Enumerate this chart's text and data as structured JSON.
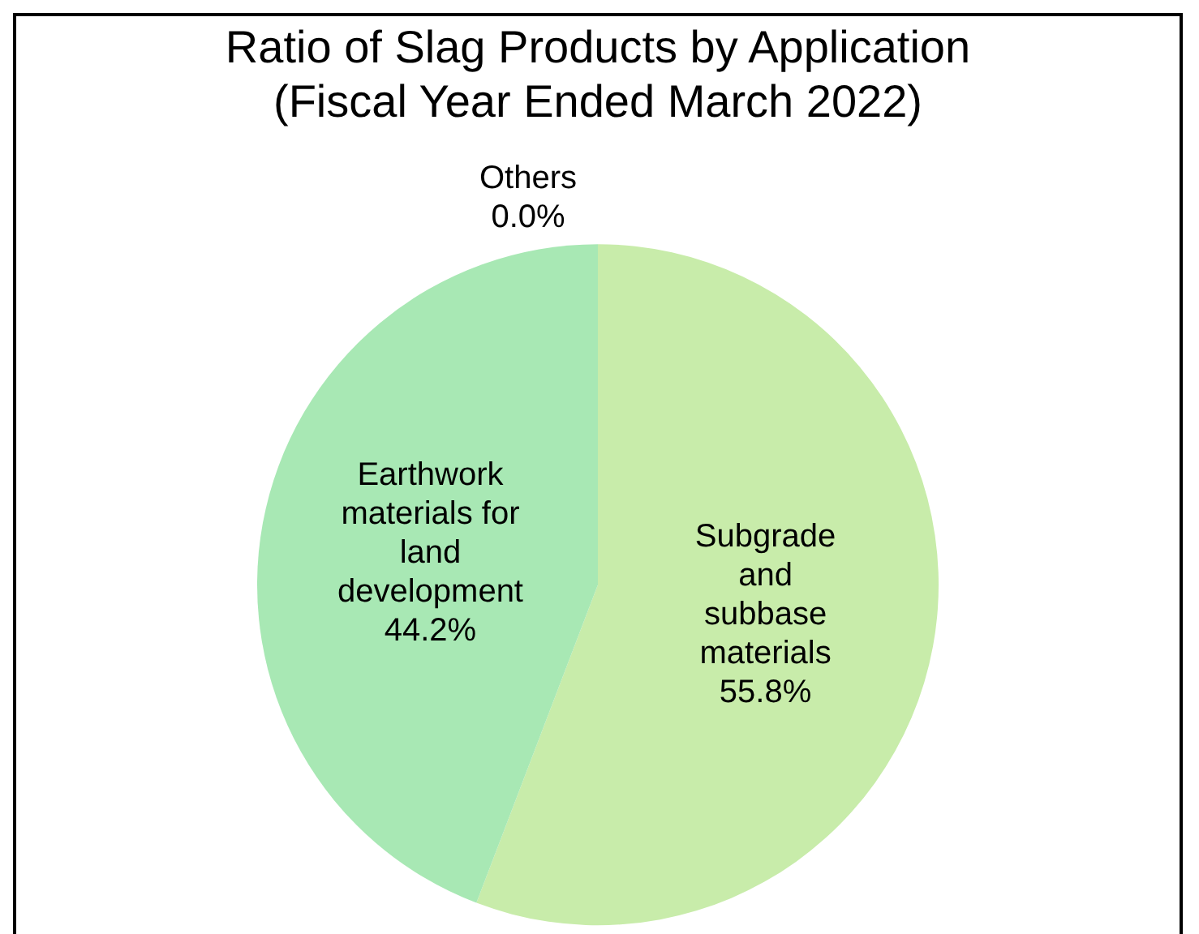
{
  "chart_data": {
    "type": "pie",
    "title": "Ratio of Slag Products by Application\n(Fiscal Year Ended March 2022)",
    "categories": [
      "Subgrade\nand\nsubbase\nmaterials",
      "Earthwork\nmaterials for\nland\ndevelopment",
      "Others"
    ],
    "values": [
      55.8,
      44.2,
      0.0
    ],
    "colors": [
      "#c8ecaa",
      "#a8e8b4",
      "#d0e8c0"
    ],
    "value_labels": [
      "55.8%",
      "44.2%",
      "0.0%"
    ],
    "legend": false
  }
}
